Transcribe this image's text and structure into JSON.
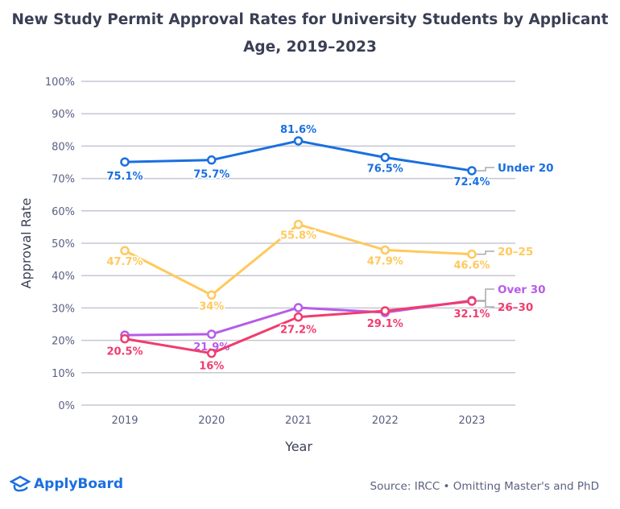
{
  "chart_data": {
    "type": "line",
    "title": "New Study Permit Approval Rates for University Students by Applicant Age, 2019–2023",
    "xlabel": "Year",
    "ylabel": "Approval Rate",
    "categories": [
      "2019",
      "2020",
      "2021",
      "2022",
      "2023"
    ],
    "yticks": [
      "0%",
      "10%",
      "20%",
      "30%",
      "40%",
      "50%",
      "60%",
      "70%",
      "80%",
      "90%",
      "100%"
    ],
    "ylim": [
      0,
      100
    ],
    "grid": true,
    "legend": "right-end labels",
    "series": [
      {
        "name": "Under 20",
        "color": "#1a6fe0",
        "values": [
          75.1,
          75.7,
          81.6,
          76.5,
          72.4
        ],
        "labels": [
          "75.1%",
          "75.7%",
          "81.6%",
          "76.5%",
          "72.4%"
        ]
      },
      {
        "name": "20–25",
        "color": "#ffc95e",
        "values": [
          47.7,
          34,
          55.8,
          47.9,
          46.6
        ],
        "labels": [
          "47.7%",
          "34%",
          "55.8%",
          "47.9%",
          "46.6%"
        ]
      },
      {
        "name": "Over 30",
        "color": "#b65ce8",
        "values": [
          21.6,
          21.9,
          30.1,
          28.6,
          32.3
        ],
        "labels": [
          null,
          "21.9%",
          null,
          null,
          null
        ]
      },
      {
        "name": "26–30",
        "color": "#f03c6e",
        "values": [
          20.5,
          16,
          27.2,
          29.1,
          32.1
        ],
        "labels": [
          "20.5%",
          "16%",
          "27.2%",
          "29.1%",
          "32.1%"
        ]
      }
    ]
  },
  "footer": {
    "logo": "ApplyBoard",
    "source": "Source: IRCC • Omitting Master's and PhD"
  }
}
